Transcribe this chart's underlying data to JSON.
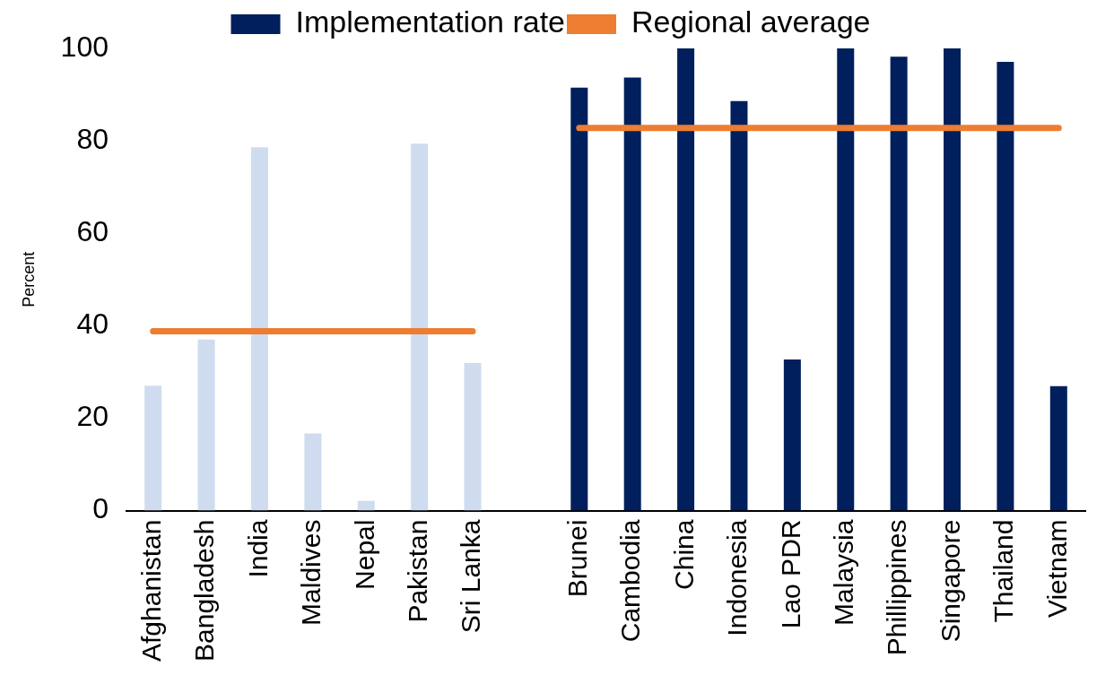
{
  "chart_data": {
    "type": "bar",
    "ylabel": "Percent",
    "categories": [
      "Afghanistan",
      "Bangladesh",
      "India",
      "Maldives",
      "Nepal",
      "Pakistan",
      "Sri Lanka",
      null,
      "Brunei",
      "Cambodia",
      "China",
      "Indonesia",
      "Lao PDR",
      "Malaysia",
      "Phillippines",
      "Singapore",
      "Thailand",
      "Vietnam"
    ],
    "series": [
      {
        "name": "Implementation rate",
        "color": "#001f5c",
        "colors": [
          "#cfdcef",
          "#cfdcef",
          "#cfdcef",
          "#cfdcef",
          "#cfdcef",
          "#cfdcef",
          "#cfdcef",
          null,
          "#001f5c",
          "#001f5c",
          "#001f5c",
          "#001f5c",
          "#001f5c",
          "#001f5c",
          "#001f5c",
          "#001f5c",
          "#001f5c",
          "#001f5c"
        ],
        "values": [
          27,
          37,
          78.6,
          16.7,
          2.1,
          79.4,
          31.9,
          null,
          91.5,
          93.7,
          100,
          88.6,
          32.7,
          100,
          98.2,
          100,
          97.1,
          26.9
        ]
      },
      {
        "name": "Regional average",
        "type": "line",
        "color": "#ed7d31",
        "values": [
          38.8,
          38.8,
          38.8,
          38.8,
          38.8,
          38.8,
          38.8,
          null,
          82.8,
          82.8,
          82.8,
          82.8,
          82.8,
          82.8,
          82.8,
          82.8,
          82.8,
          82.8
        ]
      }
    ],
    "ylim": [
      0,
      100
    ],
    "yticks": [
      0,
      20,
      40,
      60,
      80,
      100
    ],
    "grid": false,
    "legend": "top",
    "marker": "none"
  }
}
